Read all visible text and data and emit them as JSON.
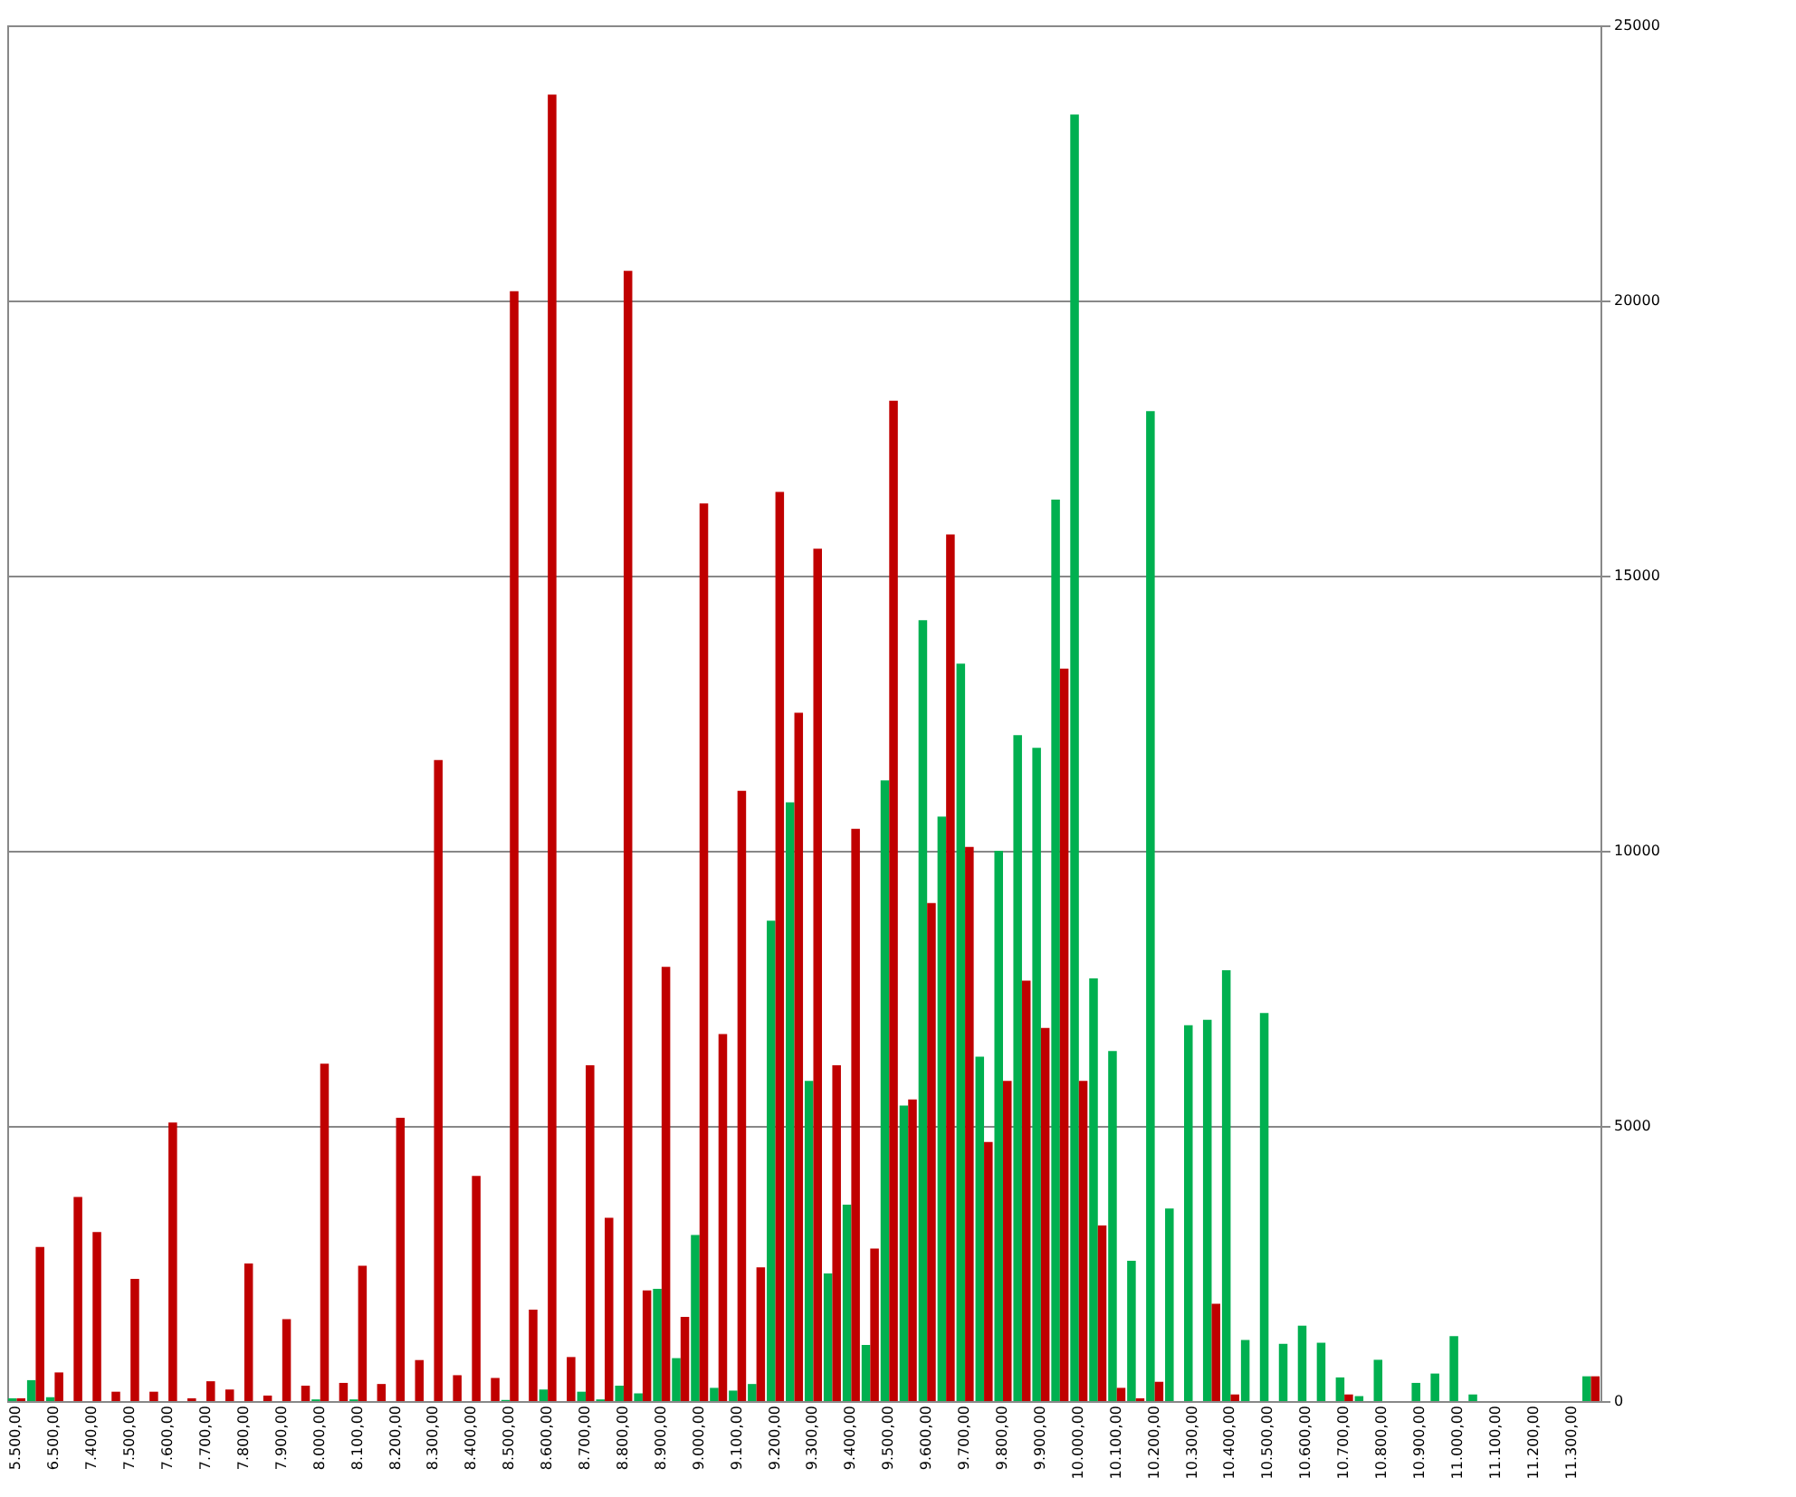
{
  "chart_data": {
    "type": "bar",
    "categories": [
      "5.500,00",
      null,
      "6.500,00",
      null,
      "7.400,00",
      null,
      "7.500,00",
      null,
      "7.600,00",
      null,
      "7.700,00",
      null,
      "7.800,00",
      null,
      "7.900,00",
      null,
      "8.000,00",
      null,
      "8.100,00",
      null,
      "8.200,00",
      null,
      "8.300,00",
      null,
      "8.400,00",
      null,
      "8.500,00",
      null,
      "8.600,00",
      null,
      "8.700,00",
      null,
      "8.800,00",
      null,
      "8.900,00",
      null,
      "9.000,00",
      null,
      "9.100,00",
      null,
      "9.200,00",
      null,
      "9.300,00",
      null,
      "9.400,00",
      null,
      "9.500,00",
      null,
      "9.600,00",
      null,
      "9.700,00",
      null,
      "9.800,00",
      null,
      "9.900,00",
      null,
      "10.000,00",
      null,
      "10.100,00",
      null,
      "10.200,00",
      null,
      "10.300,00",
      null,
      "10.400,00",
      null,
      "10.500,00",
      null,
      "10.600,00",
      null,
      "10.700,00",
      null,
      "10.800,00",
      null,
      "10.900,00",
      null,
      "11.000,00",
      null,
      "11.100,00",
      null,
      "11.200,00",
      null,
      "11.300,00",
      null
    ],
    "series": [
      {
        "color": "#00b050",
        "values": [
          50,
          380,
          70,
          null,
          null,
          null,
          null,
          null,
          null,
          null,
          null,
          null,
          null,
          null,
          null,
          null,
          30,
          null,
          30,
          null,
          null,
          null,
          null,
          null,
          null,
          null,
          20,
          null,
          210,
          null,
          170,
          30,
          280,
          140,
          2040,
          780,
          3020,
          240,
          190,
          310,
          8730,
          10880,
          5820,
          2320,
          3570,
          1020,
          11280,
          5370,
          14190,
          10620,
          13400,
          6260,
          10000,
          12100,
          11870,
          16380,
          23380,
          7680,
          6360,
          2550,
          17990,
          3500,
          6830,
          6930,
          7830,
          1110,
          7050,
          1040,
          1370,
          1060,
          430,
          90,
          750,
          null,
          330,
          500,
          1180,
          120,
          null,
          null,
          null,
          null,
          null,
          450
        ]
      },
      {
        "color": "#c00000",
        "values": [
          50,
          2800,
          520,
          3710,
          3070,
          170,
          2220,
          170,
          5060,
          50,
          360,
          210,
          2500,
          100,
          1490,
          280,
          6130,
          330,
          2460,
          310,
          5150,
          745,
          11650,
          470,
          4090,
          420,
          20170,
          1660,
          23740,
          800,
          6100,
          3330,
          20540,
          2010,
          7890,
          1530,
          16310,
          6670,
          11090,
          2430,
          16520,
          12510,
          15490,
          6100,
          10400,
          2770,
          18180,
          5480,
          9050,
          15750,
          10070,
          4710,
          5820,
          7640,
          6780,
          13310,
          5820,
          3190,
          240,
          50,
          350,
          null,
          null,
          1770,
          120,
          null,
          null,
          null,
          null,
          null,
          120,
          null,
          null,
          null,
          null,
          null,
          null,
          null,
          null,
          null,
          null,
          null,
          null,
          450
        ]
      }
    ],
    "ylim": [
      0,
      25000
    ],
    "yticks": [
      0,
      5000,
      10000,
      15000,
      20000,
      25000
    ],
    "grid": "y",
    "legend": false
  }
}
